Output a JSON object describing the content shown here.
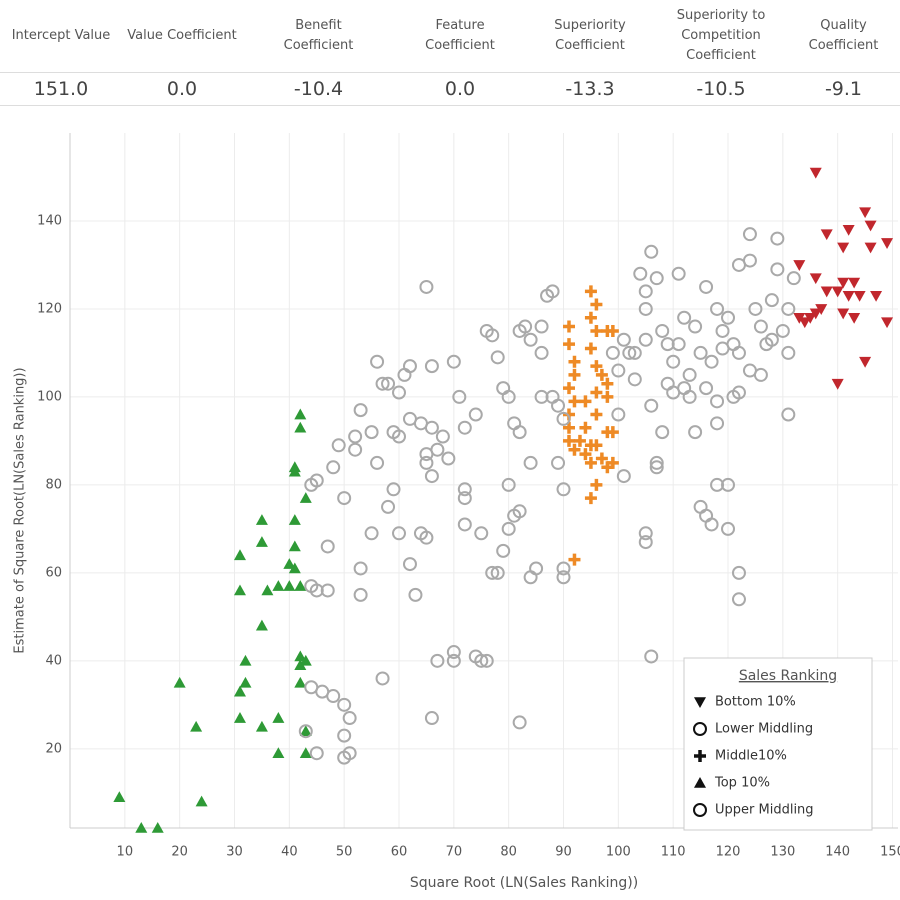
{
  "table": {
    "headers": [
      "Intercept Value",
      "Value Coefficient",
      "Benefit Coefficient",
      "Feature Coefficient",
      "Superiority Coefficient",
      "Superiority to Competition Coefficient",
      "Quality Coefficient"
    ],
    "values": [
      "151.0",
      "0.0",
      "-10.4",
      "0.0",
      "-13.3",
      "-10.5",
      "-9.1"
    ]
  },
  "chart_data": {
    "type": "scatter",
    "x_label": "Square Root (LN(Sales Ranking))",
    "y_label": "Estimate of Square Root(LN(Sales Ranking))",
    "xlim": [
      0,
      151
    ],
    "ylim": [
      2,
      160
    ],
    "xticks": [
      10,
      20,
      30,
      40,
      50,
      60,
      70,
      80,
      90,
      100,
      110,
      120,
      130,
      140,
      150
    ],
    "yticks": [
      20,
      40,
      60,
      80,
      100,
      120,
      140
    ],
    "grid": true,
    "legend_title": "Sales Ranking",
    "legend_position": "bottom right",
    "series": [
      {
        "name": "Bottom 10%",
        "color": "#c1272d",
        "marker": "triangle-down",
        "x": [
          136,
          145,
          146,
          138,
          142,
          141,
          146,
          149,
          133,
          136,
          141,
          143,
          138,
          140,
          142,
          144,
          147,
          133,
          135,
          136,
          137,
          141,
          143,
          149,
          145,
          140,
          134
        ],
        "values": [
          151,
          142,
          139,
          137,
          138,
          134,
          134,
          135,
          130,
          127,
          126,
          126,
          124,
          124,
          123,
          123,
          123,
          118,
          118,
          119,
          120,
          119,
          118,
          117,
          108,
          103,
          117
        ]
      },
      {
        "name": "Lower Middling",
        "color": "#a9a9a9",
        "marker": "circle",
        "x": [
          101,
          102,
          103,
          104,
          105,
          105,
          106,
          107,
          108,
          109,
          110,
          111,
          112,
          113,
          114,
          115,
          116,
          118,
          119,
          120,
          121,
          122,
          122,
          124,
          124,
          125,
          126,
          127,
          128,
          129,
          129,
          130,
          131,
          132,
          131,
          131,
          122,
          121,
          118,
          118,
          116,
          114,
          113,
          112,
          110,
          108,
          107,
          107,
          106,
          105,
          103,
          100,
          100,
          101,
          105,
          105,
          106,
          115,
          116,
          117,
          118,
          120,
          122,
          122,
          120,
          109,
          111,
          99,
          124,
          126,
          128,
          119,
          117
        ],
        "values": [
          113,
          110,
          110,
          128,
          124,
          120,
          133,
          127,
          115,
          112,
          108,
          128,
          118,
          105,
          116,
          110,
          125,
          120,
          115,
          118,
          112,
          110,
          130,
          137,
          131,
          120,
          116,
          112,
          122,
          136,
          129,
          115,
          120,
          127,
          110,
          96,
          101,
          100,
          99,
          94,
          102,
          92,
          100,
          102,
          101,
          92,
          85,
          84,
          98,
          113,
          104,
          106,
          96,
          82,
          69,
          67,
          41,
          75,
          73,
          71,
          80,
          80,
          60,
          54,
          70,
          103,
          112,
          110,
          106,
          105,
          113,
          111,
          108
        ]
      },
      {
        "name": "Middle10%",
        "color": "#ee8a25",
        "marker": "cross",
        "x": [
          95,
          96,
          95,
          91,
          96,
          98,
          99,
          91,
          95,
          92,
          96,
          92,
          97,
          98,
          91,
          96,
          92,
          94,
          98,
          91,
          96,
          91,
          94,
          98,
          99,
          91,
          93,
          95,
          96,
          92,
          94,
          95,
          97,
          99,
          98,
          96,
          95,
          92
        ],
        "values": [
          124,
          121,
          118,
          116,
          115,
          115,
          115,
          112,
          111,
          108,
          107,
          105,
          105,
          103,
          102,
          101,
          99,
          99,
          100,
          96,
          96,
          93,
          93,
          92,
          92,
          90,
          90,
          89,
          89,
          88,
          87,
          85,
          86,
          85,
          84,
          80,
          77,
          63
        ]
      },
      {
        "name": "Top 10%",
        "color": "#2e9a36",
        "marker": "triangle-up",
        "x": [
          42,
          42,
          41,
          41,
          43,
          35,
          41,
          35,
          41,
          31,
          40,
          41,
          31,
          36,
          38,
          40,
          42,
          35,
          32,
          42,
          43,
          42,
          42,
          32,
          31,
          20,
          43,
          38,
          31,
          35,
          23,
          38,
          43,
          9,
          24,
          13,
          16
        ],
        "values": [
          96,
          93,
          84,
          83,
          77,
          72,
          72,
          67,
          66,
          64,
          62,
          61,
          56,
          56,
          57,
          57,
          57,
          48,
          40,
          41,
          40,
          39,
          35,
          35,
          33,
          35,
          24,
          27,
          27,
          25,
          25,
          19,
          19,
          9,
          8,
          2,
          2
        ]
      },
      {
        "name": "Upper Middling",
        "color": "#a9a9a9",
        "marker": "circle",
        "x": [
          44,
          45,
          44,
          45,
          47,
          44,
          46,
          45,
          43,
          48,
          50,
          50,
          51,
          50,
          51,
          47,
          48,
          50,
          49,
          52,
          52,
          53,
          55,
          56,
          57,
          58,
          59,
          60,
          60,
          61,
          62,
          62,
          64,
          65,
          65,
          66,
          66,
          67,
          68,
          69,
          70,
          71,
          72,
          74,
          76,
          77,
          78,
          79,
          80,
          81,
          82,
          83,
          84,
          86,
          86,
          87,
          88,
          89,
          90,
          82,
          53,
          53,
          55,
          56,
          58,
          59,
          60,
          62,
          63,
          64,
          65,
          66,
          67,
          66,
          57,
          70,
          70,
          72,
          72,
          72,
          74,
          75,
          76,
          75,
          77,
          78,
          79,
          80,
          80,
          81,
          82,
          82,
          84,
          85,
          84,
          86,
          88,
          89,
          90,
          90,
          90,
          65
        ],
        "values": [
          80,
          81,
          57,
          56,
          56,
          34,
          33,
          19,
          24,
          32,
          30,
          23,
          27,
          18,
          19,
          66,
          84,
          77,
          89,
          91,
          88,
          97,
          92,
          108,
          103,
          103,
          92,
          91,
          101,
          105,
          107,
          95,
          94,
          85,
          87,
          107,
          93,
          88,
          91,
          86,
          108,
          100,
          93,
          96,
          115,
          114,
          109,
          102,
          100,
          94,
          92,
          116,
          113,
          116,
          110,
          123,
          124,
          98,
          95,
          115,
          61,
          55,
          69,
          85,
          75,
          79,
          69,
          62,
          55,
          69,
          68,
          82,
          40,
          27,
          36,
          40,
          42,
          71,
          79,
          77,
          41,
          40,
          40,
          69,
          60,
          60,
          65,
          80,
          70,
          73,
          74,
          26,
          59,
          61,
          85,
          100,
          100,
          85,
          61,
          79,
          59,
          125
        ]
      }
    ]
  }
}
